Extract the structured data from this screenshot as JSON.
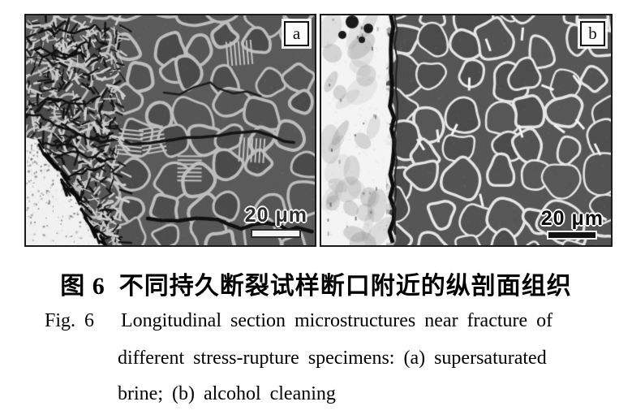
{
  "figure": {
    "panels": [
      {
        "label": "a",
        "scale_text": "20 μm"
      },
      {
        "label": "b",
        "scale_text": "20 μm"
      }
    ],
    "caption": {
      "zh": "图 6  不同持久断裂试样断口附近的纵剖面组织",
      "en_line1": "Fig. 6   Longitudinal section microstructures near fracture of",
      "en_line2": "different stress-rupture specimens: (a) supersaturated",
      "en_line3": "brine; (b) alcohol cleaning"
    }
  }
}
